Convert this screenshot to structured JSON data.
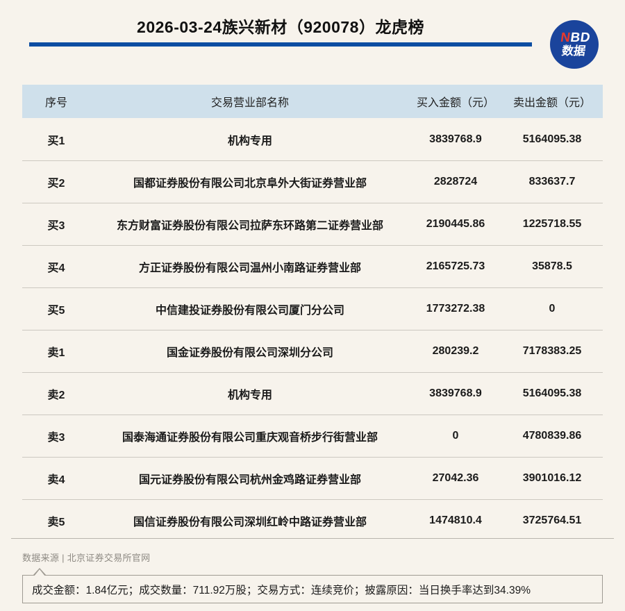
{
  "chart_data": {
    "type": "table",
    "title": "2026-03-24族兴新材（920078）龙虎榜",
    "columns": [
      "序号",
      "交易营业部名称",
      "买入金额（元）",
      "卖出金额（元）"
    ],
    "rows": [
      {
        "rank": "买1",
        "broker": "机构专用",
        "buy": "3839768.9",
        "sell": "5164095.38"
      },
      {
        "rank": "买2",
        "broker": "国都证券股份有限公司北京阜外大街证券营业部",
        "buy": "2828724",
        "sell": "833637.7"
      },
      {
        "rank": "买3",
        "broker": "东方财富证券股份有限公司拉萨东环路第二证券营业部",
        "buy": "2190445.86",
        "sell": "1225718.55"
      },
      {
        "rank": "买4",
        "broker": "方正证券股份有限公司温州小南路证券营业部",
        "buy": "2165725.73",
        "sell": "35878.5"
      },
      {
        "rank": "买5",
        "broker": "中信建投证券股份有限公司厦门分公司",
        "buy": "1773272.38",
        "sell": "0"
      },
      {
        "rank": "卖1",
        "broker": "国金证券股份有限公司深圳分公司",
        "buy": "280239.2",
        "sell": "7178383.25"
      },
      {
        "rank": "卖2",
        "broker": "机构专用",
        "buy": "3839768.9",
        "sell": "5164095.38"
      },
      {
        "rank": "卖3",
        "broker": "国泰海通证券股份有限公司重庆观音桥步行街营业部",
        "buy": "0",
        "sell": "4780839.86"
      },
      {
        "rank": "卖4",
        "broker": "国元证券股份有限公司杭州金鸡路证券营业部",
        "buy": "27042.36",
        "sell": "3901016.12"
      },
      {
        "rank": "卖5",
        "broker": "国信证券股份有限公司深圳红岭中路证券营业部",
        "buy": "1474810.4",
        "sell": "3725764.51"
      }
    ],
    "source": "数据来源 | 北京证券交易所官网",
    "note": "成交金额：1.84亿元；成交数量：711.92万股；交易方式：连续竞价；披露原因：当日换手率达到34.39%",
    "legend_position": "none",
    "grid": "row-separators"
  },
  "logo": {
    "brand_first_letter": "N",
    "brand_rest": "BD",
    "subtext": "数据"
  },
  "colors": {
    "page_bg": "#f7f3ec",
    "accent_blue": "#0c4da2",
    "logo_blue": "#1a449c",
    "logo_red": "#e5392e",
    "table_header_bg": "#cfe0eb",
    "row_separator": "#ccc8c0",
    "source_text": "#8e8a83",
    "note_border": "#9e9a92"
  }
}
